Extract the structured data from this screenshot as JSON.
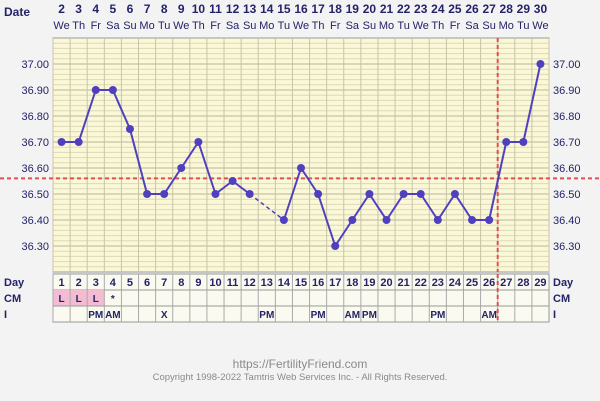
{
  "header": {
    "date_label": "Date",
    "dates": [
      "2",
      "3",
      "4",
      "5",
      "6",
      "7",
      "8",
      "9",
      "10",
      "11",
      "12",
      "13",
      "14",
      "15",
      "16",
      "17",
      "18",
      "19",
      "20",
      "21",
      "22",
      "23",
      "24",
      "25",
      "26",
      "27",
      "28",
      "29",
      "30"
    ],
    "weekdays": [
      "We",
      "Th",
      "Fr",
      "Sa",
      "Su",
      "Mo",
      "Tu",
      "We",
      "Th",
      "Fr",
      "Sa",
      "Su",
      "Mo",
      "Tu",
      "We",
      "Th",
      "Fr",
      "Sa",
      "Su",
      "Mo",
      "Tu",
      "We",
      "Th",
      "Fr",
      "Sa",
      "Su",
      "Mo",
      "Tu",
      "We"
    ]
  },
  "rows": {
    "day_label": "Day",
    "days": [
      "1",
      "2",
      "3",
      "4",
      "5",
      "6",
      "7",
      "8",
      "9",
      "10",
      "11",
      "12",
      "13",
      "14",
      "15",
      "16",
      "17",
      "18",
      "19",
      "20",
      "21",
      "22",
      "23",
      "24",
      "25",
      "26",
      "27",
      "28",
      "29"
    ],
    "cm_label": "CM",
    "cm": [
      "L",
      "L",
      "L",
      "*",
      "",
      "",
      "",
      "",
      "",
      "",
      "",
      "",
      "",
      "",
      "",
      "",
      "",
      "",
      "",
      "",
      "",
      "",
      "",
      "",
      "",
      "",
      "",
      "",
      ""
    ],
    "i_label": "I",
    "i": [
      "",
      "",
      "PM",
      "AM",
      "",
      "",
      "X",
      "",
      "",
      "",
      "",
      "",
      "PM",
      "",
      "",
      "PM",
      "",
      "AM",
      "PM",
      "",
      "",
      "",
      "PM",
      "",
      "",
      "AM",
      "",
      "",
      ""
    ]
  },
  "chart_data": {
    "type": "line",
    "title": "",
    "xlabel": "Day",
    "ylabel": "",
    "x": [
      1,
      2,
      3,
      4,
      5,
      6,
      7,
      8,
      9,
      10,
      11,
      12,
      13,
      14,
      15,
      16,
      17,
      18,
      19,
      20,
      21,
      22,
      23,
      24,
      25,
      26,
      27,
      28,
      29
    ],
    "series": [
      {
        "values": [
          36.7,
          36.7,
          36.9,
          36.9,
          36.75,
          36.5,
          36.5,
          36.6,
          36.7,
          36.5,
          36.55,
          36.5,
          null,
          36.4,
          36.6,
          36.5,
          36.3,
          36.4,
          36.5,
          36.4,
          36.5,
          36.5,
          36.4,
          36.5,
          36.4,
          36.4,
          36.7,
          36.7,
          37.0
        ]
      }
    ],
    "dashed_segment": [
      12,
      14
    ],
    "ylim": [
      36.2,
      37.1
    ],
    "y_ticks": [
      "37.00",
      "36.90",
      "36.80",
      "36.70",
      "36.60",
      "36.50",
      "36.40",
      "36.30"
    ],
    "coverline": 36.56,
    "ovulation_day": 26,
    "grid": true,
    "colors": {
      "line": "#5040c0",
      "coverline": "#e05050",
      "grid_bg": "#fbf8d8",
      "pink": "#f4bcd2"
    }
  },
  "footer": {
    "url": "https://FertilityFriend.com",
    "copyright": "Copyright 1998-2022 Tamtris Web Services Inc. - All Rights Reserved."
  }
}
